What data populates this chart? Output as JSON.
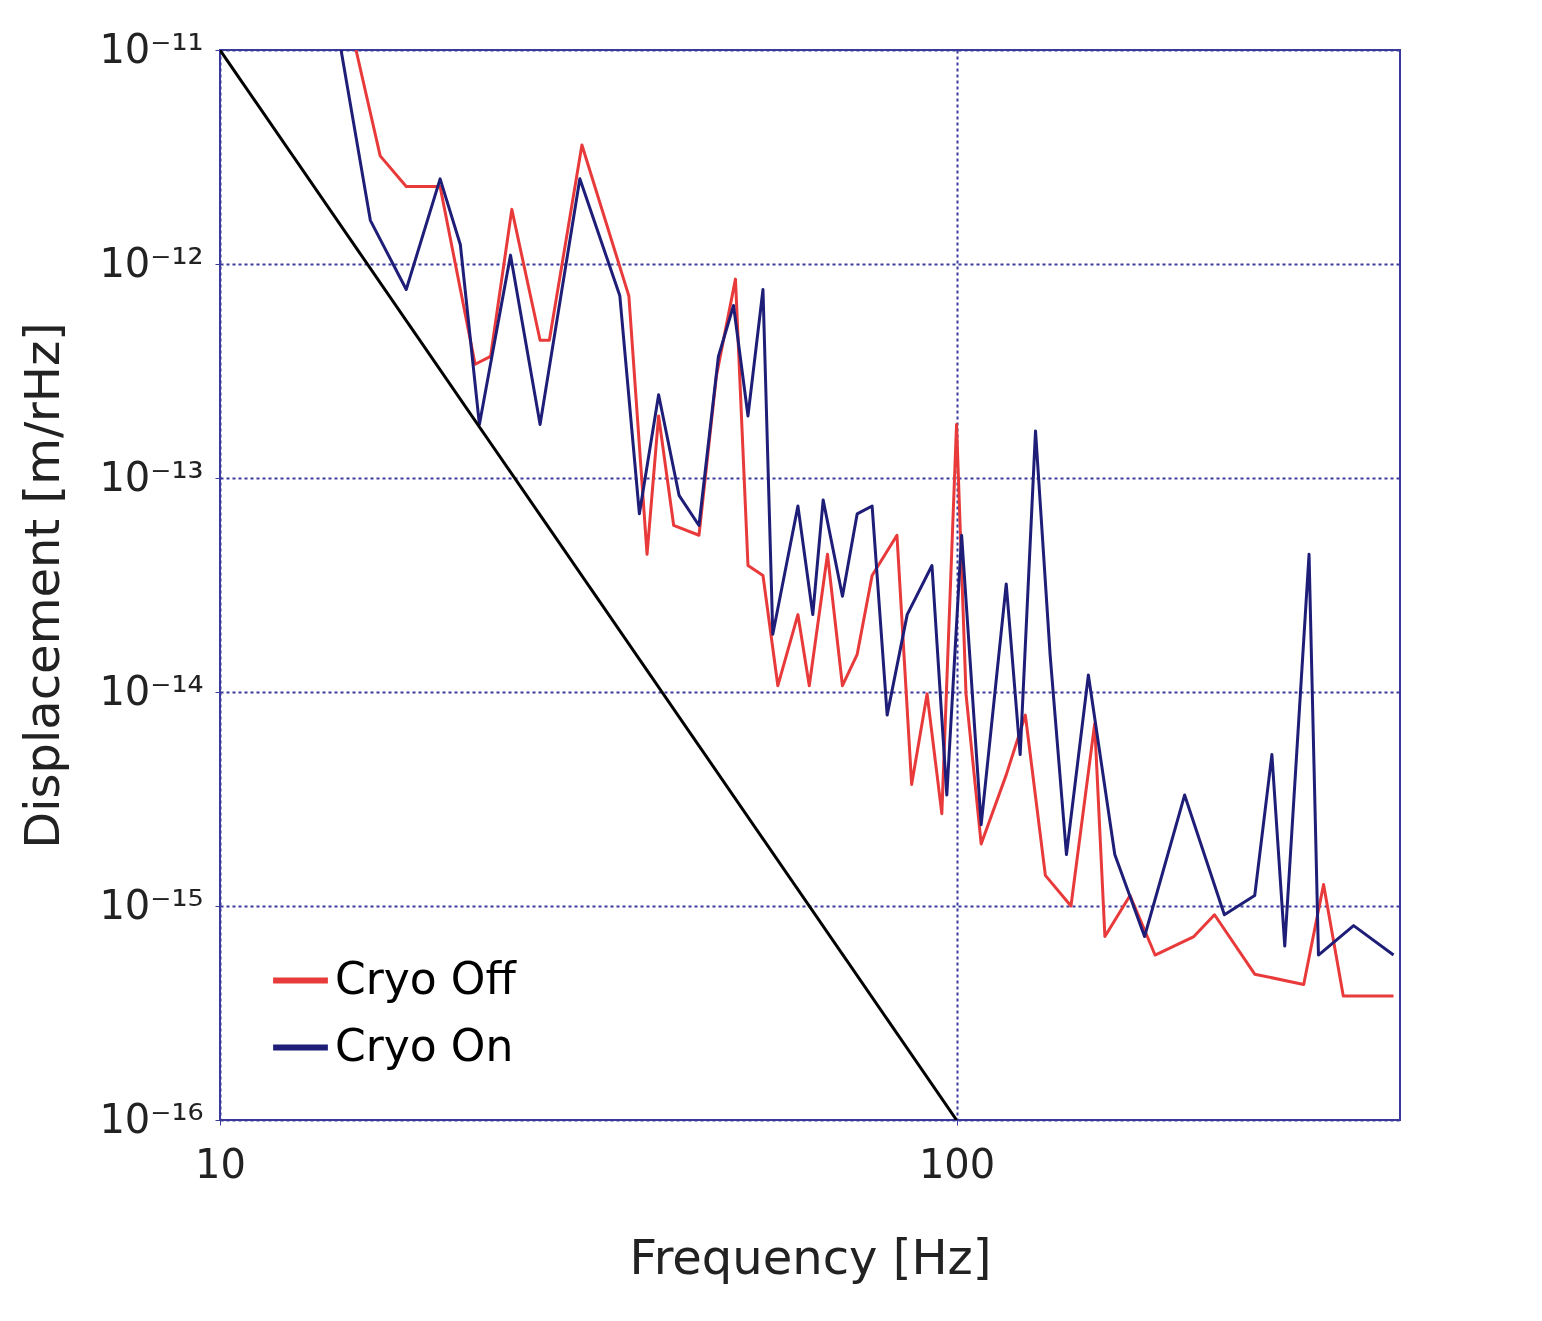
{
  "chart_data": {
    "type": "line",
    "xlabel": "Frequency [Hz]",
    "ylabel": "Displacement [m/rHz]",
    "log": "xy",
    "grid": true,
    "legend": "bottom left",
    "line_style": "solid",
    "marker": "none",
    "xlim": [
      10,
      400
    ],
    "xticks": [
      10,
      100
    ],
    "ylim": [
      1e-16,
      1e-11
    ],
    "yticks": [
      {
        "value": 1e-16,
        "label": "10⁻¹⁶"
      },
      {
        "value": 1e-15,
        "label": "10⁻¹⁵"
      },
      {
        "value": 1e-14,
        "label": "10⁻¹⁴"
      },
      {
        "value": 1e-13,
        "label": "10⁻¹³"
      },
      {
        "value": 1e-12,
        "label": "10⁻¹²"
      },
      {
        "value": 1e-11,
        "label": "10⁻¹¹"
      }
    ],
    "series": [
      {
        "name": "Cryo Off",
        "color": "#e83a3a",
        "x": [
          15.3,
          16.5,
          17.9,
          19.9,
          22.2,
          23.3,
          24.9,
          27.2,
          28.0,
          31.0,
          35.9,
          38.0,
          39.4,
          41.3,
          44.7,
          47.2,
          50.1,
          52.1,
          54.6,
          57.2,
          60.9,
          63.1,
          66.8,
          70.0,
          73.3,
          76.8,
          83.0,
          86.9,
          91.2,
          95.5,
          100,
          103,
          108,
          116.8,
          124,
          132,
          143,
          154,
          159,
          172,
          186,
          210,
          224,
          254,
          296,
          315,
          335,
          392
        ],
        "values": [
          1e-11,
          3.2e-12,
          2.3e-12,
          2.3e-12,
          3.4e-13,
          3.7e-13,
          1.8e-12,
          4.4e-13,
          4.4e-13,
          3.6e-12,
          7.1e-13,
          4.4e-14,
          1.95e-13,
          6e-14,
          5.4e-14,
          3e-13,
          8.5e-13,
          3.9e-14,
          3.5e-14,
          1.07e-14,
          2.3e-14,
          1.07e-14,
          4.4e-14,
          1.07e-14,
          1.5e-14,
          3.5e-14,
          5.4e-14,
          3.7e-15,
          9.8e-15,
          2.7e-15,
          1.78e-13,
          9.8e-15,
          1.95e-15,
          4.1e-15,
          7.8e-15,
          1.39e-15,
          1e-15,
          7.1e-15,
          7.2e-16,
          1.12e-15,
          5.9e-16,
          7.2e-16,
          9.1e-16,
          4.8e-16,
          4.3e-16,
          1.26e-15,
          3.8e-16,
          3.8e-16
        ]
      },
      {
        "name": "Cryo On",
        "color": "#1e1e78",
        "x": [
          14.6,
          16.0,
          17.9,
          19.9,
          21.2,
          22.5,
          24.8,
          27.2,
          30.8,
          34.9,
          37.1,
          39.4,
          42.0,
          44.7,
          47.5,
          49.8,
          52.1,
          54.6,
          56.3,
          60.9,
          63.8,
          65.9,
          70.0,
          73.3,
          76.8,
          80.5,
          85.7,
          92.6,
          97.0,
          101.6,
          108,
          116.8,
          122,
          128,
          134,
          141,
          151,
          164,
          180,
          204,
          231,
          254,
          268,
          279,
          301,
          310,
          346,
          392
        ],
        "values": [
          1e-11,
          1.6e-12,
          7.6e-13,
          2.5e-12,
          1.23e-12,
          1.78e-13,
          1.1e-12,
          1.78e-13,
          2.5e-12,
          7.1e-13,
          6.8e-14,
          2.45e-13,
          8.3e-14,
          6e-14,
          3.7e-13,
          6.4e-13,
          1.95e-13,
          7.6e-13,
          1.86e-14,
          7.4e-14,
          2.3e-14,
          7.9e-14,
          2.8e-14,
          6.8e-14,
          7.4e-14,
          7.8e-15,
          2.3e-14,
          3.9e-14,
          3.3e-15,
          5.4e-14,
          2.4e-15,
          3.2e-14,
          5.1e-15,
          1.66e-13,
          1.48e-14,
          1.74e-15,
          1.2e-14,
          1.74e-15,
          7.2e-16,
          3.3e-15,
          9.1e-16,
          1.12e-15,
          5.1e-15,
          6.5e-16,
          4.4e-14,
          5.9e-16,
          8.1e-16,
          5.9e-16
        ]
      },
      {
        "type": "line",
        "color": "#000000",
        "x": [
          10,
          100
        ],
        "values": [
          1e-11,
          1e-16
        ]
      }
    ]
  }
}
